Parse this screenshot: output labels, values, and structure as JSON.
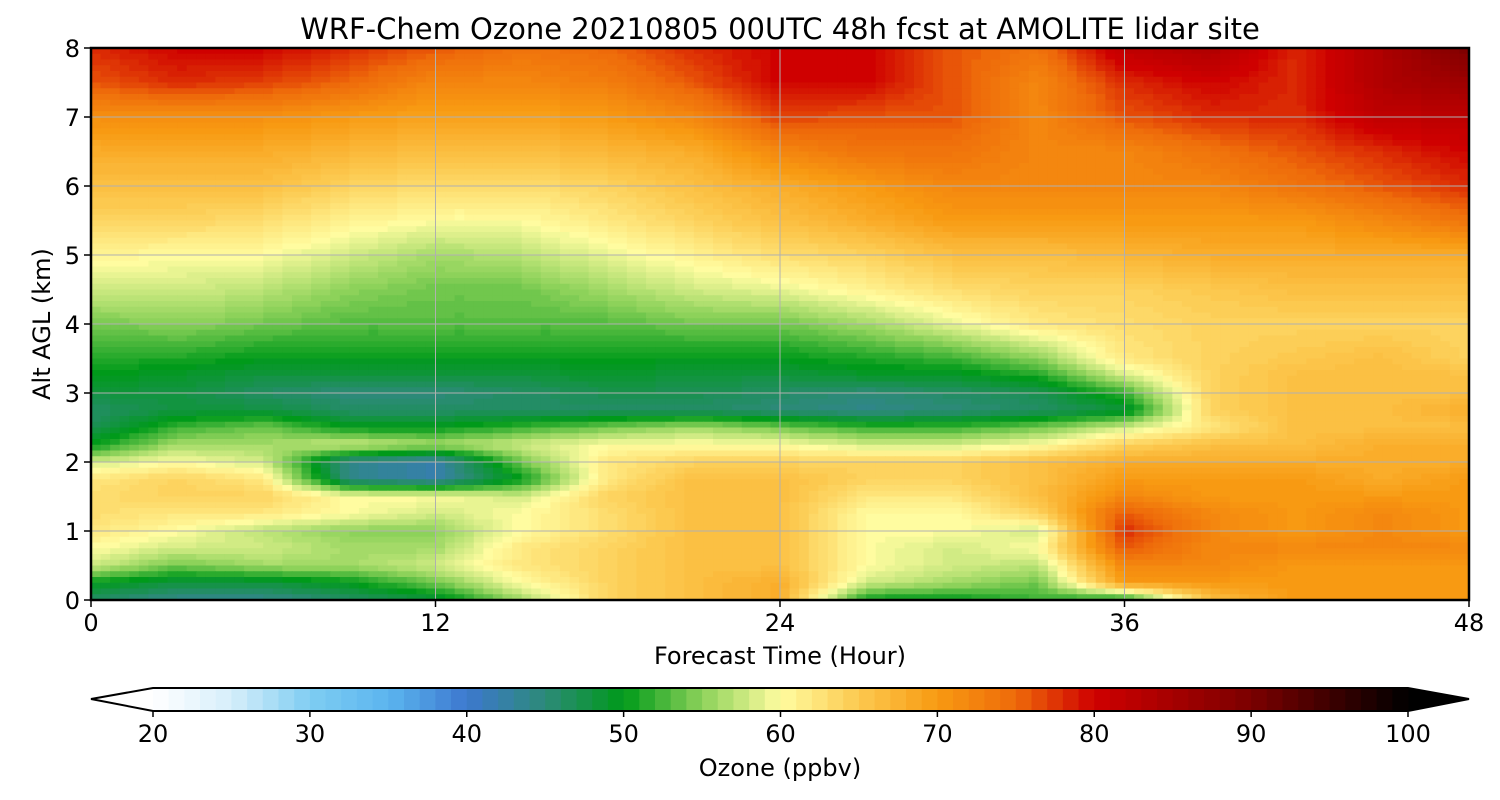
{
  "chart_data": {
    "type": "heatmap",
    "title": "WRF-Chem Ozone  20210805 00UTC 48h fcst at AMOLITE lidar site",
    "xlabel": "Forecast Time (Hour)",
    "ylabel": "Alt AGL (km)",
    "xlim": [
      0,
      48
    ],
    "ylim": [
      0,
      8
    ],
    "xticks": [
      "0",
      "12",
      "24",
      "36",
      "48"
    ],
    "yticks": [
      "0",
      "1",
      "2",
      "3",
      "4",
      "5",
      "6",
      "7",
      "8"
    ],
    "grid": true,
    "x": [
      0,
      3,
      6,
      9,
      12,
      15,
      18,
      21,
      24,
      27,
      30,
      33,
      36,
      39,
      42,
      45,
      48
    ],
    "y": [
      0,
      0.25,
      0.5,
      0.75,
      1,
      1.25,
      1.5,
      1.75,
      2,
      2.25,
      2.5,
      2.75,
      3,
      3.25,
      3.5,
      4,
      4.5,
      5,
      5.5,
      6,
      6.5,
      7,
      7.5,
      8
    ],
    "z": [
      [
        46,
        44,
        44,
        46,
        48,
        56,
        64,
        66,
        68,
        50,
        50,
        52,
        50,
        66,
        70,
        70,
        70
      ],
      [
        50,
        48,
        48,
        50,
        54,
        60,
        64,
        66,
        68,
        58,
        56,
        54,
        70,
        70,
        70,
        70,
        70
      ],
      [
        58,
        54,
        56,
        56,
        58,
        62,
        64,
        66,
        66,
        60,
        58,
        57,
        72,
        72,
        70,
        70,
        70
      ],
      [
        60,
        58,
        58,
        56,
        56,
        62,
        64,
        66,
        66,
        60,
        58,
        60,
        76,
        72,
        72,
        72,
        72
      ],
      [
        62,
        60,
        57,
        55,
        55,
        60,
        63,
        66,
        66,
        60,
        60,
        58,
        78,
        72,
        70,
        72,
        70
      ],
      [
        63,
        62,
        62,
        60,
        58,
        60,
        63,
        66,
        66,
        60,
        60,
        64,
        76,
        72,
        70,
        72,
        70
      ],
      [
        63,
        64,
        64,
        60,
        60,
        58,
        64,
        66,
        66,
        62,
        62,
        66,
        72,
        70,
        70,
        70,
        70
      ],
      [
        62,
        64,
        62,
        44,
        42,
        50,
        62,
        66,
        66,
        64,
        64,
        66,
        70,
        70,
        70,
        68,
        70
      ],
      [
        58,
        60,
        58,
        44,
        42,
        54,
        62,
        64,
        64,
        64,
        64,
        66,
        68,
        68,
        68,
        68,
        68
      ],
      [
        50,
        56,
        56,
        58,
        56,
        58,
        60,
        60,
        60,
        58,
        58,
        60,
        64,
        66,
        66,
        68,
        68
      ],
      [
        47,
        52,
        54,
        50,
        50,
        52,
        54,
        56,
        54,
        52,
        52,
        54,
        58,
        62,
        66,
        66,
        66
      ],
      [
        46,
        48,
        48,
        46,
        46,
        46,
        46,
        46,
        45,
        44,
        45,
        46,
        48,
        64,
        66,
        66,
        68
      ],
      [
        48,
        48,
        46,
        45,
        45,
        46,
        47,
        47,
        46,
        45,
        46,
        47,
        52,
        64,
        66,
        66,
        66
      ],
      [
        50,
        49,
        48,
        48,
        48,
        48,
        49,
        48,
        48,
        49,
        49,
        51,
        58,
        64,
        66,
        66,
        66
      ],
      [
        51,
        51,
        50,
        50,
        50,
        50,
        50,
        50,
        50,
        51,
        52,
        55,
        62,
        64,
        65,
        66,
        64
      ],
      [
        54,
        55,
        54,
        53,
        53,
        53,
        53,
        54,
        54,
        56,
        59,
        62,
        63,
        64,
        64,
        64,
        64
      ],
      [
        58,
        58,
        57,
        55,
        54,
        54,
        56,
        58,
        59,
        61,
        63,
        64,
        64,
        65,
        66,
        66,
        66
      ],
      [
        61,
        60,
        60,
        58,
        56,
        57,
        59,
        61,
        63,
        64,
        66,
        66,
        67,
        68,
        68,
        68,
        68
      ],
      [
        64,
        64,
        63,
        61,
        60,
        60,
        62,
        64,
        66,
        68,
        70,
        70,
        70,
        70,
        70,
        72,
        74
      ],
      [
        66,
        66,
        66,
        64,
        63,
        63,
        64,
        66,
        68,
        70,
        72,
        72,
        72,
        72,
        74,
        76,
        78
      ],
      [
        68,
        68,
        68,
        67,
        66,
        66,
        67,
        68,
        72,
        74,
        74,
        72,
        72,
        74,
        76,
        78,
        80
      ],
      [
        71,
        71,
        71,
        70,
        69,
        69,
        70,
        72,
        77,
        76,
        76,
        72,
        76,
        78,
        78,
        82,
        82
      ],
      [
        76,
        78,
        77,
        75,
        72,
        72,
        73,
        76,
        80,
        80,
        76,
        72,
        78,
        80,
        78,
        84,
        86
      ],
      [
        78,
        80,
        80,
        78,
        76,
        74,
        75,
        78,
        80,
        80,
        76,
        74,
        82,
        84,
        78,
        84,
        90
      ]
    ],
    "colorbar": {
      "label": "Ozone  (ppbv)",
      "ticks": [
        "20",
        "30",
        "40",
        "50",
        "60",
        "70",
        "80",
        "90",
        "100"
      ],
      "min": 20,
      "max": 100,
      "extend": "both",
      "colors": {
        "20": "#ffffff",
        "25": "#d6eefa",
        "30": "#7fcdf2",
        "35": "#5bb5ef",
        "40": "#3d78cf",
        "45": "#2c8a78",
        "50": "#009a1a",
        "55": "#8dd25a",
        "60": "#fffca0",
        "65": "#fcc94f",
        "70": "#f89a12",
        "75": "#ee6a0a",
        "80": "#cf0000",
        "90": "#7b0000",
        "100": "#000000"
      }
    }
  }
}
